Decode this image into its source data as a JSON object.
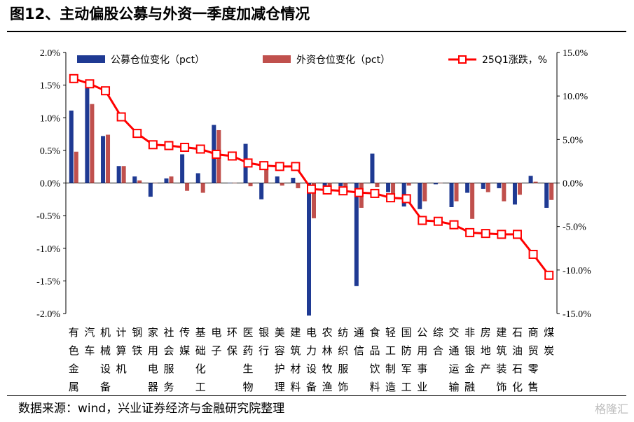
{
  "title": "图12、主动偏股公募与外资一季度加减仓情况",
  "source": "数据来源：wind，兴业证券经济与金融研究院整理",
  "watermark": "格隆汇",
  "colors": {
    "fund": "#1f3a93",
    "foreign": "#c0504d",
    "line": "#ff0000"
  },
  "chart_data": {
    "type": "bar+line",
    "categories": [
      "有色金属",
      "汽车",
      "机械设备",
      "计算机",
      "钢铁",
      "家用电器",
      "社会服务",
      "传媒",
      "基础化工",
      "电子",
      "环保",
      "医药生物",
      "银行",
      "美容护理",
      "建筑材料",
      "电力设备",
      "农林牧渔",
      "纺织服饰",
      "通信",
      "食品饮料",
      "轻工制造",
      "国防军工",
      "公用事业",
      "综合",
      "交通运输",
      "非银金融",
      "房地产",
      "建筑装饰",
      "石油石化",
      "商贸零售",
      "煤炭"
    ],
    "left_axis": {
      "ylim": [
        -2.0,
        2.0
      ],
      "ticks": [
        "2.0%",
        "1.5%",
        "1.0%",
        "0.5%",
        "0.0%",
        "-0.5%",
        "-1.0%",
        "-1.5%",
        "-2.0%"
      ]
    },
    "right_axis": {
      "ylim": [
        -15.0,
        15.0
      ],
      "ticks": [
        "15.0%",
        "10.0%",
        "5.0%",
        "0.0%",
        "-5.0%",
        "-10.0%",
        "-15.0%"
      ]
    },
    "series": [
      {
        "name": "公募仓位变化（pct）",
        "type": "bar",
        "axis": "left",
        "values": [
          1.11,
          1.5,
          0.72,
          0.26,
          0.1,
          -0.21,
          0.07,
          0.44,
          0.15,
          0.89,
          0.0,
          0.6,
          -0.25,
          0.1,
          0.08,
          -2.03,
          -0.07,
          -0.05,
          -1.58,
          0.45,
          -0.14,
          -0.36,
          -0.4,
          -0.02,
          -0.37,
          -0.15,
          -0.09,
          -0.08,
          -0.33,
          0.11,
          -0.38
        ]
      },
      {
        "name": "外资仓位变化（pct）",
        "type": "bar",
        "axis": "left",
        "values": [
          0.48,
          1.21,
          0.74,
          0.26,
          0.04,
          0.0,
          0.1,
          -0.12,
          -0.15,
          0.81,
          0.0,
          -0.05,
          0.22,
          -0.04,
          -0.08,
          -0.54,
          -0.06,
          -0.13,
          -0.38,
          -0.06,
          -0.22,
          -0.04,
          -0.28,
          0.0,
          -0.28,
          -0.55,
          -0.14,
          -0.28,
          -0.18,
          0.02,
          -0.26
        ]
      },
      {
        "name": "25Q1涨跌，%",
        "type": "line",
        "axis": "right",
        "values": [
          12.0,
          11.4,
          10.6,
          7.6,
          5.7,
          4.4,
          4.3,
          4.1,
          3.9,
          3.3,
          3.1,
          2.3,
          2.0,
          1.9,
          1.9,
          -0.7,
          -0.8,
          -0.9,
          -1.1,
          -1.2,
          -1.7,
          -1.8,
          -4.3,
          -4.4,
          -4.8,
          -5.7,
          -5.8,
          -5.9,
          -5.9,
          -8.2,
          -10.6
        ]
      }
    ],
    "legend_position": "top",
    "grid": false
  }
}
